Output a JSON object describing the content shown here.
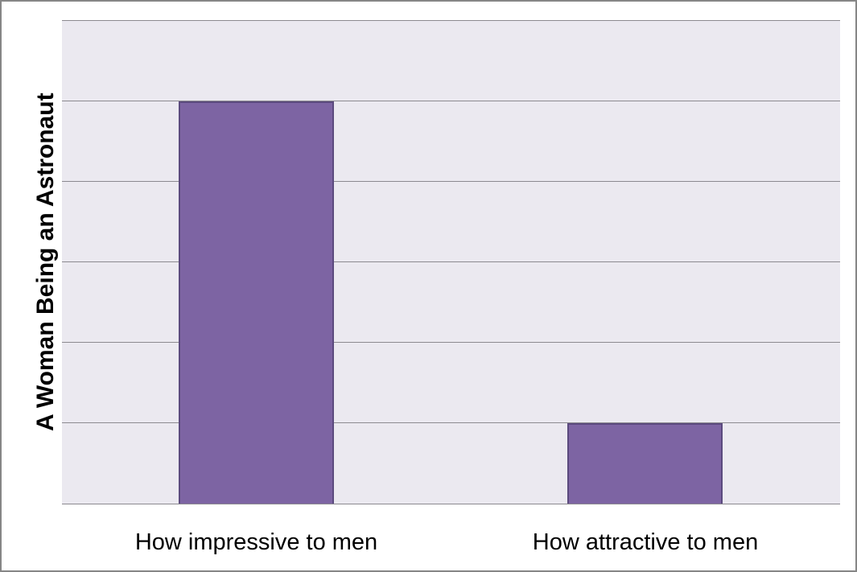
{
  "chart_data": {
    "type": "bar",
    "title": "",
    "ylabel": "A Woman Being an Astronaut",
    "xlabel": "",
    "categories": [
      "How impressive to men",
      "How attractive to men"
    ],
    "values": [
      5,
      1
    ],
    "ylim": [
      0,
      6
    ],
    "gridline_interval": 1,
    "grid": true,
    "legend": false,
    "y_tick_labels": "none",
    "colors": {
      "bar_fill": "#7d64a3",
      "bar_border": "#5b4a7e",
      "plot_background": "#ebe9f0",
      "gridline": "#8c8a90",
      "outer_border": "#868686",
      "page_background": "#ffffff",
      "text": "#000000"
    }
  }
}
